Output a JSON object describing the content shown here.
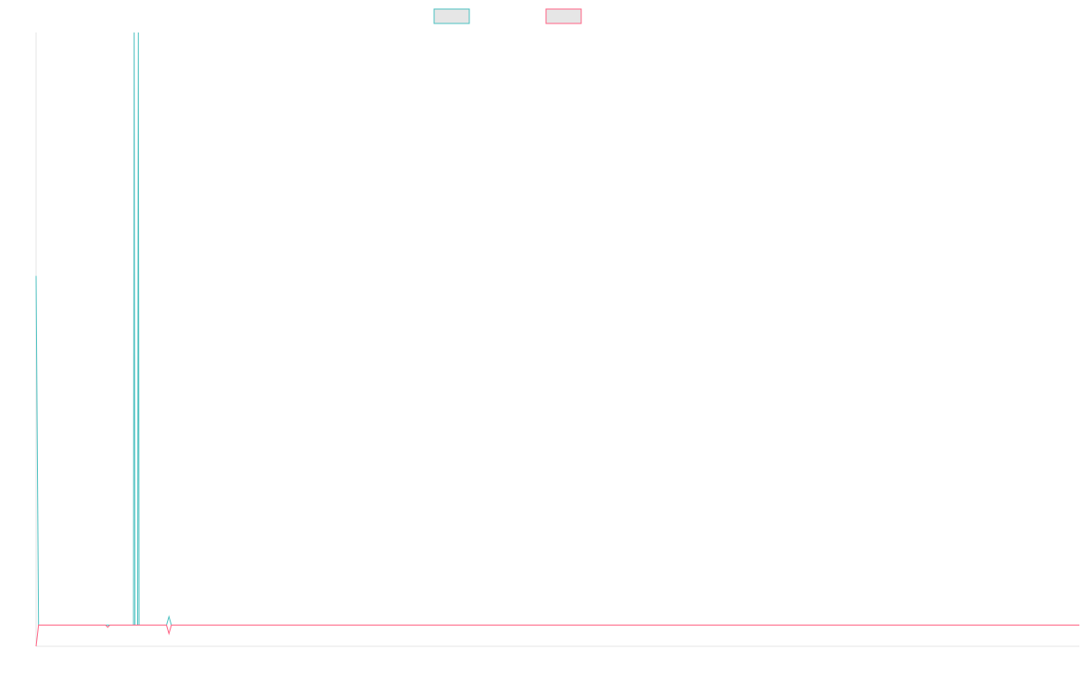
{
  "colors": {
    "series_a": "#4bc0c0",
    "series_b": "#ff6384",
    "legend_fill": "#e6e6e6",
    "axis": "#e5e5e5"
  },
  "chart_data": {
    "type": "line",
    "title": "",
    "xlabel": "",
    "ylabel": "",
    "grid": false,
    "legend": {
      "placement": "top-center",
      "entries_text_visible": false
    },
    "x_range": [
      0,
      300
    ],
    "ylim": [
      -1,
      28
    ],
    "series": [
      {
        "color": "#4bc0c0",
        "points": [
          [
            0,
            16.5
          ],
          [
            0.7,
            0
          ],
          [
            20,
            0
          ],
          [
            28,
            0
          ],
          [
            28.2,
            28
          ],
          [
            28.4,
            0
          ],
          [
            29.2,
            0
          ],
          [
            29.4,
            28
          ],
          [
            29.6,
            0
          ],
          [
            37.5,
            0
          ],
          [
            38.2,
            0.4
          ],
          [
            38.9,
            0
          ],
          [
            300,
            0
          ]
        ]
      },
      {
        "color": "#ff6384",
        "points": [
          [
            0,
            -1
          ],
          [
            0.7,
            0
          ],
          [
            20,
            0
          ],
          [
            20.6,
            -0.1
          ],
          [
            21.2,
            0
          ],
          [
            37.5,
            0
          ],
          [
            38.2,
            -0.4
          ],
          [
            38.9,
            0
          ],
          [
            300,
            0
          ]
        ]
      }
    ]
  }
}
